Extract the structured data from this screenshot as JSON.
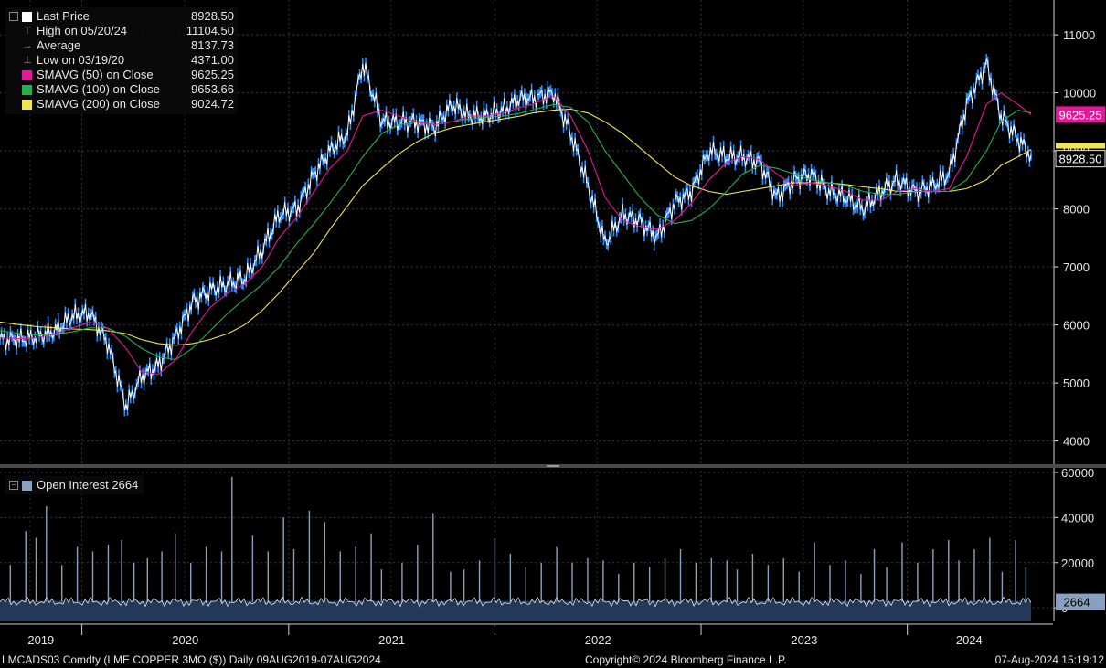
{
  "legend": [
    {
      "label": "Last Price",
      "value": "8928.50",
      "color": "#ffffff",
      "glyph": "box"
    },
    {
      "label": "High on 05/20/24",
      "value": "11104.50",
      "color": "#aaaaaa",
      "glyph": "T"
    },
    {
      "label": "Average",
      "value": "8137.73",
      "color": "#aaaaaa",
      "glyph": "-+-"
    },
    {
      "label": "Low on 03/19/20",
      "value": "4371.00",
      "color": "#aaaaaa",
      "glyph": "⊥"
    },
    {
      "label": "SMAVG (50)  on Close",
      "value": "9625.25",
      "color": "#e6179a",
      "glyph": "box"
    },
    {
      "label": "SMAVG (100)  on Close",
      "value": "9653.66",
      "color": "#22b14c",
      "glyph": "box"
    },
    {
      "label": "SMAVG (200)  on Close",
      "value": "9024.72",
      "color": "#f2e64c",
      "glyph": "box"
    }
  ],
  "oi_legend": {
    "label": "Open Interest 2664",
    "color": "#8aa0c0"
  },
  "footer": {
    "ticker": "LMCADS03 Comdty (LME COPPER    3MO ($))  Daily 09AUG2019-07AUG2024",
    "copyright": "Copyright© 2024 Bloomberg Finance L.P.",
    "timestamp": "07-Aug-2024 15:19:12"
  },
  "tags": {
    "sma50": {
      "text": "9625.25",
      "color": "#e6179a"
    },
    "last": {
      "text": "8928.50",
      "color": "#ffffff"
    },
    "oi": {
      "text": "2664",
      "color": "#8aa0c0"
    }
  },
  "chart_data": [
    {
      "type": "line",
      "title": "",
      "xlabel": "",
      "ylabel": "",
      "ylim": [
        3600,
        11600
      ],
      "y_ticks": [
        4000,
        5000,
        6000,
        7000,
        8000,
        9000,
        10000,
        11000
      ],
      "x_ticks": [
        "2019",
        "2020",
        "2021",
        "2022",
        "2023",
        "2024"
      ],
      "grid": true,
      "legend_position": "top-left",
      "x_dates": [
        "2019-08-09",
        "2019-09-15",
        "2019-10-15",
        "2019-11-15",
        "2019-12-15",
        "2020-01-15",
        "2020-02-15",
        "2020-03-19",
        "2020-04-15",
        "2020-05-15",
        "2020-06-15",
        "2020-07-15",
        "2020-08-15",
        "2020-09-15",
        "2020-10-15",
        "2020-11-15",
        "2020-12-15",
        "2021-01-15",
        "2021-02-15",
        "2021-03-15",
        "2021-04-15",
        "2021-05-12",
        "2021-06-15",
        "2021-07-15",
        "2021-08-15",
        "2021-09-15",
        "2021-10-18",
        "2021-11-15",
        "2021-12-15",
        "2022-01-15",
        "2022-02-15",
        "2022-03-07",
        "2022-04-15",
        "2022-05-15",
        "2022-06-15",
        "2022-07-15",
        "2022-08-15",
        "2022-09-15",
        "2022-10-15",
        "2022-11-15",
        "2022-12-15",
        "2023-01-15",
        "2023-02-15",
        "2023-03-15",
        "2023-04-15",
        "2023-05-15",
        "2023-06-15",
        "2023-07-15",
        "2023-08-15",
        "2023-09-15",
        "2023-10-15",
        "2023-11-15",
        "2023-12-15",
        "2024-01-15",
        "2024-02-15",
        "2024-03-15",
        "2024-04-15",
        "2024-05-20",
        "2024-06-15",
        "2024-07-15",
        "2024-08-07"
      ],
      "series": [
        {
          "name": "Last Price",
          "color": "#ffffff",
          "values": [
            5750,
            5750,
            5800,
            5900,
            6150,
            6200,
            5700,
            4600,
            5100,
            5300,
            5800,
            6400,
            6600,
            6700,
            6800,
            7300,
            7900,
            8000,
            8600,
            9000,
            9300,
            10500,
            9500,
            9500,
            9500,
            9400,
            9800,
            9600,
            9600,
            9700,
            9900,
            9900,
            10000,
            9300,
            8400,
            7400,
            7900,
            7800,
            7500,
            8100,
            8300,
            9000,
            8900,
            8900,
            8800,
            8200,
            8500,
            8600,
            8300,
            8200,
            8000,
            8300,
            8500,
            8300,
            8400,
            8600,
            9800,
            10500,
            9600,
            9200,
            8928.5
          ]
        },
        {
          "name": "SMAVG (50)  on Close",
          "color": "#e6179a",
          "values": [
            5780,
            5760,
            5780,
            5850,
            5950,
            6050,
            5950,
            5600,
            5200,
            5150,
            5400,
            5900,
            6300,
            6550,
            6700,
            7000,
            7500,
            7850,
            8300,
            8700,
            9000,
            9600,
            9700,
            9600,
            9500,
            9450,
            9500,
            9600,
            9600,
            9650,
            9750,
            9800,
            9950,
            9600,
            9000,
            8200,
            7800,
            7700,
            7650,
            7800,
            8100,
            8500,
            8800,
            8900,
            8850,
            8600,
            8400,
            8450,
            8400,
            8300,
            8150,
            8150,
            8300,
            8350,
            8300,
            8350,
            8900,
            9800,
            10000,
            9800,
            9625.25
          ]
        },
        {
          "name": "SMAVG (100)  on Close",
          "color": "#22b14c",
          "values": [
            5900,
            5850,
            5830,
            5840,
            5880,
            5950,
            5950,
            5800,
            5600,
            5450,
            5400,
            5600,
            5900,
            6200,
            6450,
            6700,
            7000,
            7400,
            7750,
            8100,
            8500,
            8900,
            9300,
            9450,
            9500,
            9500,
            9500,
            9550,
            9580,
            9600,
            9650,
            9700,
            9800,
            9750,
            9500,
            9000,
            8600,
            8200,
            7900,
            7750,
            7800,
            8000,
            8300,
            8600,
            8750,
            8700,
            8600,
            8500,
            8450,
            8400,
            8300,
            8250,
            8250,
            8300,
            8300,
            8300,
            8500,
            9000,
            9500,
            9700,
            9653.66
          ]
        },
        {
          "name": "SMAVG (200)  on Close",
          "color": "#f2e64c",
          "values": [
            6050,
            6000,
            5970,
            5950,
            5930,
            5920,
            5900,
            5850,
            5750,
            5680,
            5650,
            5680,
            5750,
            5850,
            6000,
            6250,
            6550,
            6900,
            7250,
            7650,
            8050,
            8400,
            8700,
            8950,
            9150,
            9300,
            9400,
            9450,
            9500,
            9550,
            9600,
            9650,
            9700,
            9720,
            9650,
            9500,
            9300,
            9050,
            8800,
            8550,
            8400,
            8300,
            8250,
            8300,
            8350,
            8400,
            8450,
            8450,
            8450,
            8420,
            8380,
            8350,
            8300,
            8300,
            8300,
            8300,
            8350,
            8500,
            8750,
            8900,
            9024.72
          ]
        }
      ]
    },
    {
      "type": "bar",
      "title": "",
      "ylim": [
        -6000,
        62000
      ],
      "y_ticks": [
        0,
        20000,
        40000,
        60000
      ],
      "grid": true,
      "legend_position": "top-left",
      "series": [
        {
          "name": "Open Interest 2664",
          "color": "#8aa0c0",
          "spikes": [
            [
              0.01,
              19000
            ],
            [
              0.025,
              34000
            ],
            [
              0.035,
              31000
            ],
            [
              0.045,
              45000
            ],
            [
              0.06,
              19000
            ],
            [
              0.075,
              27000
            ],
            [
              0.09,
              25000
            ],
            [
              0.105,
              28000
            ],
            [
              0.118,
              30000
            ],
            [
              0.13,
              20000
            ],
            [
              0.143,
              22000
            ],
            [
              0.157,
              25000
            ],
            [
              0.17,
              33000
            ],
            [
              0.185,
              20000
            ],
            [
              0.2,
              27000
            ],
            [
              0.215,
              25000
            ],
            [
              0.225,
              58000
            ],
            [
              0.245,
              32000
            ],
            [
              0.26,
              25000
            ],
            [
              0.275,
              40000
            ],
            [
              0.285,
              26000
            ],
            [
              0.3,
              43000
            ],
            [
              0.315,
              38000
            ],
            [
              0.33,
              25000
            ],
            [
              0.345,
              27000
            ],
            [
              0.36,
              33000
            ],
            [
              0.37,
              17000
            ],
            [
              0.39,
              20000
            ],
            [
              0.405,
              28000
            ],
            [
              0.42,
              42000
            ],
            [
              0.437,
              16000
            ],
            [
              0.45,
              17000
            ],
            [
              0.465,
              21000
            ],
            [
              0.48,
              31000
            ],
            [
              0.495,
              24000
            ],
            [
              0.51,
              18000
            ],
            [
              0.525,
              20000
            ],
            [
              0.54,
              27000
            ],
            [
              0.555,
              20000
            ],
            [
              0.57,
              22000
            ],
            [
              0.585,
              21000
            ],
            [
              0.6,
              15000
            ],
            [
              0.615,
              20000
            ],
            [
              0.63,
              18000
            ],
            [
              0.645,
              22000
            ],
            [
              0.66,
              26000
            ],
            [
              0.675,
              20000
            ],
            [
              0.69,
              22000
            ],
            [
              0.705,
              21000
            ],
            [
              0.715,
              17000
            ],
            [
              0.73,
              24000
            ],
            [
              0.745,
              19000
            ],
            [
              0.76,
              22000
            ],
            [
              0.775,
              16000
            ],
            [
              0.79,
              29000
            ],
            [
              0.805,
              19000
            ],
            [
              0.82,
              21000
            ],
            [
              0.835,
              15000
            ],
            [
              0.848,
              26000
            ],
            [
              0.86,
              18000
            ],
            [
              0.875,
              29000
            ],
            [
              0.89,
              20000
            ],
            [
              0.905,
              26000
            ],
            [
              0.92,
              30000
            ],
            [
              0.93,
              21000
            ],
            [
              0.945,
              26000
            ],
            [
              0.96,
              31000
            ],
            [
              0.972,
              16000
            ],
            [
              0.985,
              30000
            ],
            [
              0.995,
              18000
            ]
          ]
        }
      ]
    }
  ]
}
